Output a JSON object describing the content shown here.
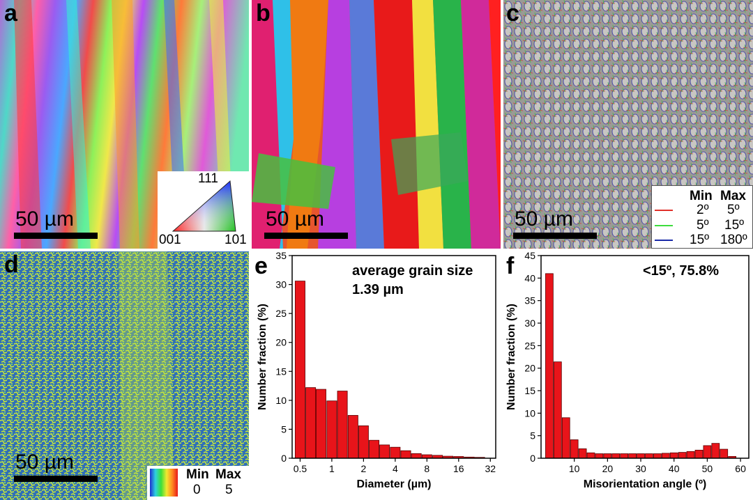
{
  "panels": {
    "a": {
      "label": "a",
      "scale": "50 µm",
      "legend": {
        "top": "111",
        "left": "001",
        "right": "101"
      }
    },
    "b": {
      "label": "b",
      "scale": "50 µm"
    },
    "c": {
      "label": "c",
      "scale": "50 µm",
      "legend": {
        "header_min": "Min",
        "header_max": "Max",
        "rows": [
          {
            "min": "2º",
            "max": "5º",
            "color": "#e0302a"
          },
          {
            "min": "5º",
            "max": "15º",
            "color": "#3ddc3d"
          },
          {
            "min": "15º",
            "max": "180º",
            "color": "#1a2aa8"
          }
        ]
      }
    },
    "d": {
      "label": "d",
      "scale": "50 µm",
      "legend": {
        "header_min": "Min",
        "header_max": "Max",
        "min": "0",
        "max": "5"
      }
    },
    "e": {
      "label": "e"
    },
    "f": {
      "label": "f"
    }
  },
  "colors": {
    "bar": "#e8141a",
    "bar_edge": "#5a0000",
    "kam_low": "#1f4fb0",
    "kam_high": "#d4ec3a"
  },
  "chart_data": [
    {
      "id": "e",
      "type": "bar",
      "title": "",
      "annotation": [
        "average grain size",
        "1.39 µm"
      ],
      "xlabel": "Diameter (µm)",
      "ylabel": "Number fraction (%)",
      "ylim": [
        0,
        35
      ],
      "yticks": [
        0,
        5,
        10,
        15,
        20,
        25,
        30,
        35
      ],
      "xscale": "log2",
      "xlim": [
        0.42,
        36
      ],
      "xticks": [
        0.5,
        1,
        2,
        4,
        8,
        16,
        32
      ],
      "xticklabels": [
        "0.5",
        "1",
        "2",
        "4",
        "8",
        "16",
        "32"
      ],
      "x": [
        0.5,
        0.63,
        0.79,
        1.0,
        1.26,
        1.59,
        2.0,
        2.52,
        3.17,
        4.0,
        5.04,
        6.35,
        8.0,
        10.1,
        12.7,
        16.0,
        20.2,
        25.4
      ],
      "values": [
        30.6,
        12.2,
        11.9,
        9.9,
        11.6,
        7.4,
        5.6,
        3.1,
        2.3,
        1.9,
        1.3,
        0.8,
        0.6,
        0.5,
        0.35,
        0.3,
        0.2,
        0.15
      ]
    },
    {
      "id": "f",
      "type": "bar",
      "title": "",
      "annotation": [
        "<15º, 75.8%"
      ],
      "xlabel": "Misorientation angle (º)",
      "ylabel": "Number fraction (%)",
      "ylim": [
        0,
        45
      ],
      "yticks": [
        0,
        5,
        10,
        15,
        20,
        25,
        30,
        35,
        40,
        45
      ],
      "xlim": [
        0,
        62.5
      ],
      "xticks": [
        10,
        20,
        30,
        40,
        50,
        60
      ],
      "xticklabels": [
        "10",
        "20",
        "30",
        "40",
        "50",
        "60"
      ],
      "x": [
        2.5,
        5,
        7.5,
        10,
        12.5,
        15,
        17.5,
        20,
        22.5,
        25,
        27.5,
        30,
        32.5,
        35,
        37.5,
        40,
        42.5,
        45,
        47.5,
        50,
        52.5,
        55,
        57.5,
        60
      ],
      "values": [
        41.0,
        21.4,
        9.0,
        4.1,
        2.1,
        1.2,
        1.0,
        1.0,
        1.0,
        1.0,
        1.0,
        1.0,
        1.0,
        1.0,
        1.1,
        1.2,
        1.3,
        1.5,
        1.8,
        2.8,
        3.3,
        2.0,
        0.4,
        0
      ]
    }
  ]
}
